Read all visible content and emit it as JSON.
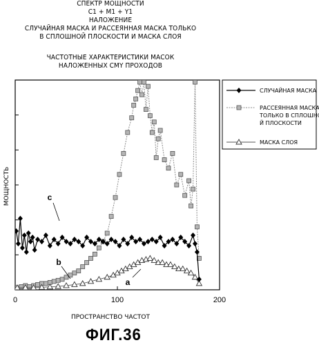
{
  "header": {
    "lines": [
      "СПЕКТР МОЩНОСТИ",
      "C1 + M1 + Y1",
      "НАЛОЖЕНИЕ",
      "СЛУЧАЙНАЯ МАСКА И РАССЕЯННАЯ МАСКА ТОЛЬКО",
      "В СПЛОШНОЙ ПЛОСКОСТИ И МАСКА СЛОЯ"
    ],
    "sublines": [
      "ЧАСТОТНЫЕ ХАРАКТЕРИСТИКИ МАСОК",
      "НАЛОЖЕННЫХ CMY ПРОХОДОВ"
    ]
  },
  "figure_label": "ФИГ.36",
  "colors": {
    "ink": "#000000",
    "background": "#ffffff",
    "grey_series": "#8a8a8a"
  },
  "chart_data": {
    "type": "line",
    "xlabel": "ПРОСТРАНСТВО ЧАСТОТ",
    "ylabel": "МОЩНОСТЬ",
    "xlim": [
      0,
      200
    ],
    "ylim": [
      0,
      1
    ],
    "xticks": [
      "0",
      "100",
      "200"
    ],
    "annotations": [
      "c",
      "b",
      "a"
    ],
    "legend_position": "right",
    "series": [
      {
        "name": "СЛУЧАЙНАЯ МАСКА",
        "marker": "diamond",
        "x": [
          1,
          3,
          5,
          7,
          9,
          11,
          13,
          15,
          17,
          19,
          22,
          26,
          30,
          34,
          38,
          42,
          46,
          50,
          54,
          58,
          62,
          66,
          70,
          74,
          78,
          82,
          86,
          90,
          94,
          98,
          102,
          106,
          110,
          114,
          118,
          122,
          126,
          130,
          134,
          138,
          142,
          146,
          150,
          154,
          158,
          162,
          166,
          170,
          174,
          176,
          178,
          180
        ],
        "y": [
          0.28,
          0.22,
          0.34,
          0.2,
          0.26,
          0.18,
          0.27,
          0.23,
          0.25,
          0.19,
          0.24,
          0.23,
          0.26,
          0.21,
          0.24,
          0.22,
          0.25,
          0.23,
          0.22,
          0.24,
          0.23,
          0.21,
          0.25,
          0.23,
          0.22,
          0.24,
          0.23,
          0.22,
          0.24,
          0.23,
          0.21,
          0.24,
          0.22,
          0.25,
          0.23,
          0.24,
          0.22,
          0.23,
          0.24,
          0.23,
          0.25,
          0.21,
          0.23,
          0.24,
          0.22,
          0.25,
          0.23,
          0.21,
          0.26,
          0.22,
          0.18,
          0.05
        ]
      },
      {
        "name": "РАССЕЯННАЯ МАСКА ТОЛЬКО В СПЛОШНОЙ ПЛОСКОСТИ",
        "marker": "square",
        "x": [
          2,
          6,
          10,
          14,
          18,
          22,
          26,
          30,
          34,
          38,
          42,
          46,
          50,
          54,
          58,
          62,
          66,
          70,
          74,
          78,
          82,
          86,
          90,
          94,
          98,
          102,
          106,
          110,
          114,
          116,
          118,
          120,
          122,
          124,
          126,
          128,
          130,
          132,
          134,
          136,
          138,
          140,
          142,
          146,
          150,
          154,
          158,
          162,
          166,
          170,
          172,
          174,
          176,
          178,
          180
        ],
        "y": [
          0.01,
          0.015,
          0.02,
          0.015,
          0.02,
          0.025,
          0.03,
          0.03,
          0.035,
          0.04,
          0.045,
          0.05,
          0.06,
          0.07,
          0.08,
          0.09,
          0.11,
          0.13,
          0.15,
          0.17,
          0.2,
          0.23,
          0.27,
          0.35,
          0.44,
          0.55,
          0.65,
          0.75,
          0.82,
          0.88,
          0.91,
          0.95,
          0.99,
          0.93,
          0.99,
          0.86,
          0.97,
          0.83,
          0.75,
          0.8,
          0.63,
          0.72,
          0.76,
          0.62,
          0.58,
          0.65,
          0.5,
          0.55,
          0.45,
          0.52,
          0.4,
          0.48,
          0.99,
          0.3,
          0.15
        ]
      },
      {
        "name": "МАСКА СЛОЯ",
        "marker": "triangle",
        "x": [
          2,
          10,
          18,
          26,
          34,
          42,
          50,
          58,
          66,
          74,
          82,
          90,
          96,
          100,
          104,
          108,
          112,
          116,
          120,
          124,
          128,
          132,
          136,
          140,
          144,
          148,
          152,
          156,
          160,
          164,
          168,
          172,
          176,
          180
        ],
        "y": [
          0.01,
          0.01,
          0.01,
          0.012,
          0.014,
          0.016,
          0.02,
          0.025,
          0.03,
          0.04,
          0.05,
          0.06,
          0.07,
          0.08,
          0.09,
          0.1,
          0.11,
          0.12,
          0.13,
          0.14,
          0.145,
          0.15,
          0.14,
          0.13,
          0.13,
          0.12,
          0.12,
          0.11,
          0.1,
          0.1,
          0.09,
          0.08,
          0.06,
          0.03
        ]
      }
    ]
  }
}
